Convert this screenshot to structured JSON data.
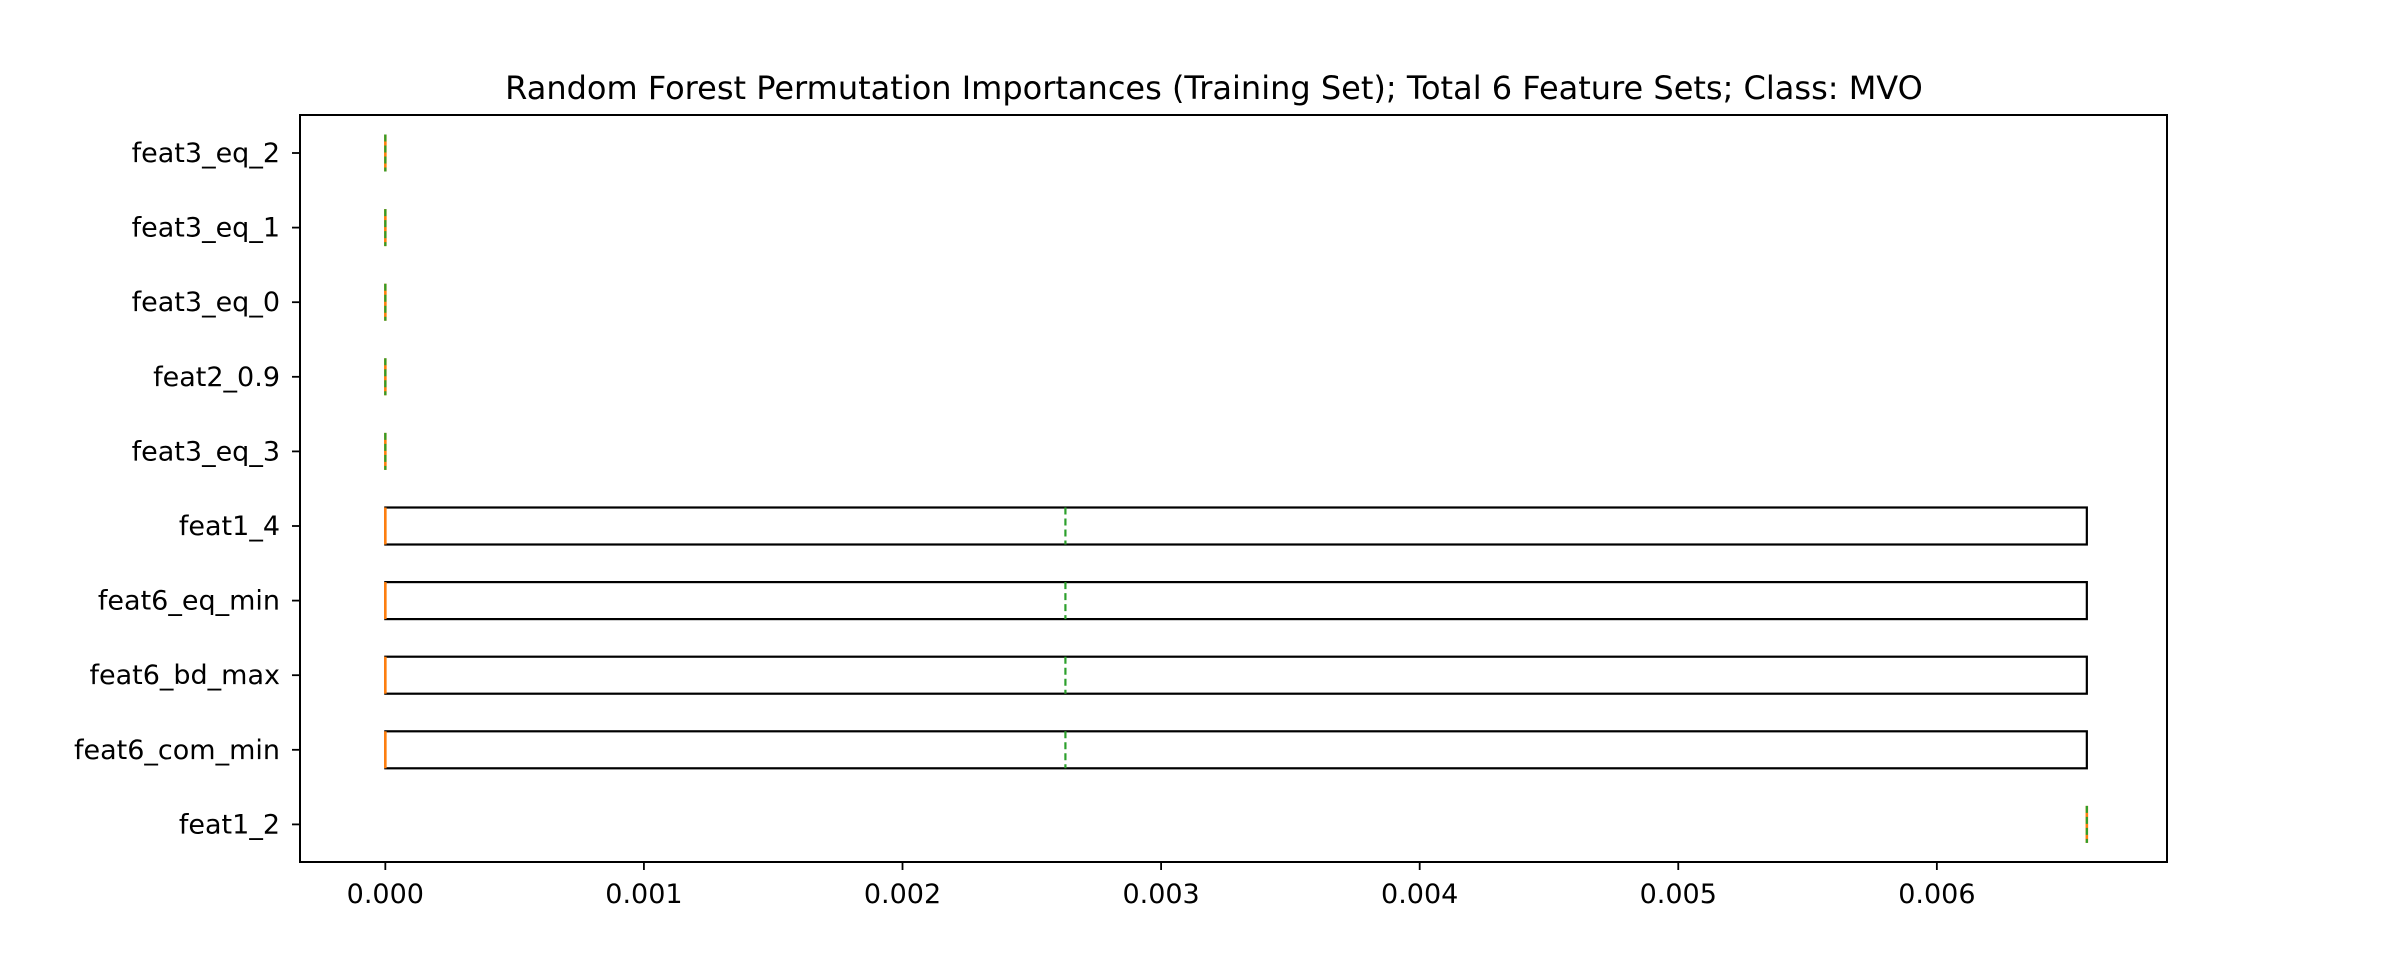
{
  "chart_data": {
    "type": "boxplot",
    "orientation": "horizontal",
    "title": "Random Forest Permutation Importances (Training Set); Total 6 Feature Sets; Class: MVO",
    "xlabel": "",
    "ylabel": "",
    "xlim": [
      -0.00033,
      0.00689
    ],
    "xticks": [
      0.0,
      0.001,
      0.002,
      0.003,
      0.004,
      0.005,
      0.006
    ],
    "xtick_labels": [
      "0.000",
      "0.001",
      "0.002",
      "0.003",
      "0.004",
      "0.005",
      "0.006"
    ],
    "grid": false,
    "legend": "none",
    "colors": {
      "box": "#000000",
      "median": "#ff7f0e",
      "mean": "#2ca02c",
      "axes": "#000000"
    },
    "boxes": [
      {
        "label": "feat3_eq_2",
        "q1": 0.0,
        "median": 0.0,
        "q3": 0.0,
        "mean": 0.0
      },
      {
        "label": "feat3_eq_1",
        "q1": 0.0,
        "median": 0.0,
        "q3": 0.0,
        "mean": 0.0
      },
      {
        "label": "feat3_eq_0",
        "q1": 0.0,
        "median": 0.0,
        "q3": 0.0,
        "mean": 0.0
      },
      {
        "label": "feat2_0.9",
        "q1": 0.0,
        "median": 0.0,
        "q3": 0.0,
        "mean": 0.0
      },
      {
        "label": "feat3_eq_3",
        "q1": 0.0,
        "median": 0.0,
        "q3": 0.0,
        "mean": 0.0
      },
      {
        "label": "feat1_4",
        "q1": 0.0,
        "median": 0.0,
        "q3": 0.00658,
        "mean": 0.00263
      },
      {
        "label": "feat6_eq_min",
        "q1": 0.0,
        "median": 0.0,
        "q3": 0.00658,
        "mean": 0.00263
      },
      {
        "label": "feat6_bd_max",
        "q1": 0.0,
        "median": 0.0,
        "q3": 0.00658,
        "mean": 0.00263
      },
      {
        "label": "feat6_com_min",
        "q1": 0.0,
        "median": 0.0,
        "q3": 0.00658,
        "mean": 0.00263
      },
      {
        "label": "feat1_2",
        "q1": 0.00658,
        "median": 0.00658,
        "q3": 0.00658,
        "mean": 0.00658
      }
    ]
  }
}
